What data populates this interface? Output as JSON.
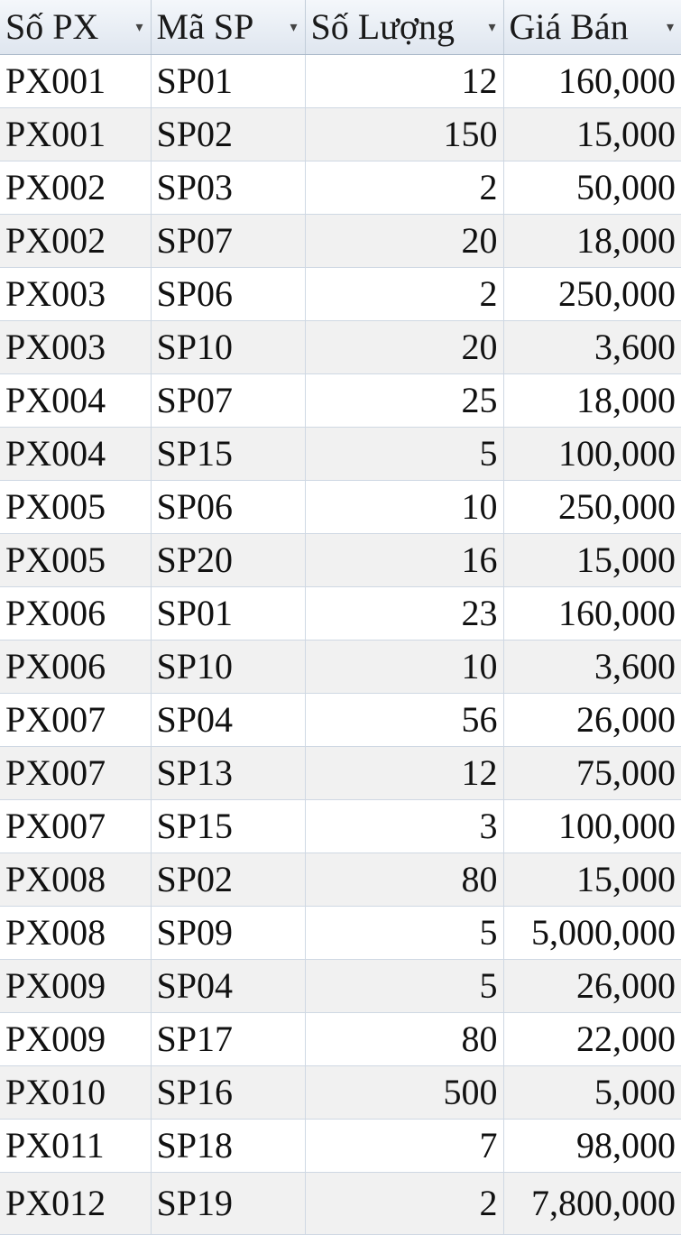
{
  "table": {
    "columns": [
      {
        "label": "Số PX",
        "align": "left"
      },
      {
        "label": "Mã SP",
        "align": "left"
      },
      {
        "label": "Số Lượng",
        "align": "right"
      },
      {
        "label": "Giá Bán",
        "align": "right"
      }
    ],
    "dropdown_icon": "▾",
    "rows": [
      [
        "PX001",
        "SP01",
        "12",
        "160,000"
      ],
      [
        "PX001",
        "SP02",
        "150",
        "15,000"
      ],
      [
        "PX002",
        "SP03",
        "2",
        "50,000"
      ],
      [
        "PX002",
        "SP07",
        "20",
        "18,000"
      ],
      [
        "PX003",
        "SP06",
        "2",
        "250,000"
      ],
      [
        "PX003",
        "SP10",
        "20",
        "3,600"
      ],
      [
        "PX004",
        "SP07",
        "25",
        "18,000"
      ],
      [
        "PX004",
        "SP15",
        "5",
        "100,000"
      ],
      [
        "PX005",
        "SP06",
        "10",
        "250,000"
      ],
      [
        "PX005",
        "SP20",
        "16",
        "15,000"
      ],
      [
        "PX006",
        "SP01",
        "23",
        "160,000"
      ],
      [
        "PX006",
        "SP10",
        "10",
        "3,600"
      ],
      [
        "PX007",
        "SP04",
        "56",
        "26,000"
      ],
      [
        "PX007",
        "SP13",
        "12",
        "75,000"
      ],
      [
        "PX007",
        "SP15",
        "3",
        "100,000"
      ],
      [
        "PX008",
        "SP02",
        "80",
        "15,000"
      ],
      [
        "PX008",
        "SP09",
        "5",
        "5,000,000"
      ],
      [
        "PX009",
        "SP04",
        "5",
        "26,000"
      ],
      [
        "PX009",
        "SP17",
        "80",
        "22,000"
      ],
      [
        "PX010",
        "SP16",
        "500",
        "5,000"
      ],
      [
        "PX011",
        "SP18",
        "7",
        "98,000"
      ],
      [
        "PX012",
        "SP19",
        "2",
        "7,800,000"
      ]
    ]
  }
}
